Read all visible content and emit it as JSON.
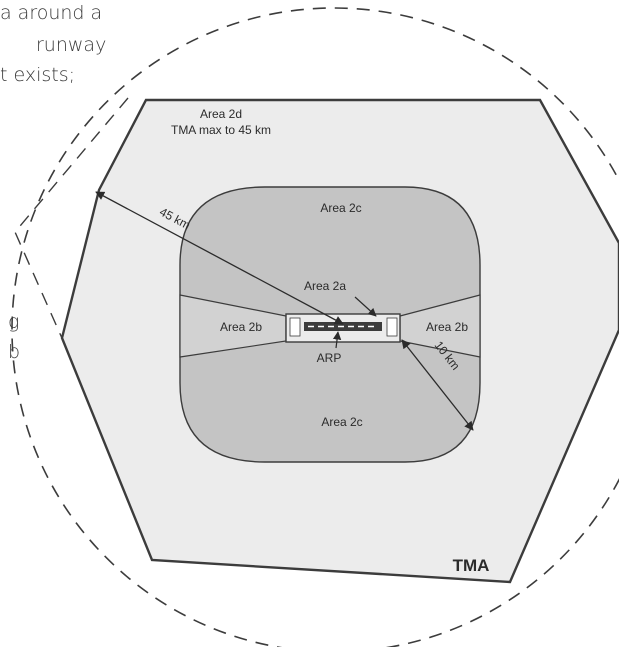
{
  "background_text": {
    "lines_top": [
      "a around a",
      "runway",
      "t exists;"
    ],
    "lines_mid": [
      "g",
      "b"
    ]
  },
  "labels": {
    "area_2d": "Area 2d",
    "area_2d_sub": "TMA max to 45 km",
    "area_2c_top": "Area 2c",
    "area_2c_bottom": "Area 2c",
    "area_2a": "Area 2a",
    "area_2b_left": "Area 2b",
    "area_2b_right": "Area 2b",
    "arp": "ARP",
    "dist_45": "45 km",
    "dist_10": "10 km",
    "tma": "TMA"
  },
  "colors": {
    "area_2d_fill": "#ececec",
    "area_2c_fill": "#c4c4c4",
    "area_2b_fill": "#d2d2d2",
    "stroke": "#3c3c3c"
  }
}
